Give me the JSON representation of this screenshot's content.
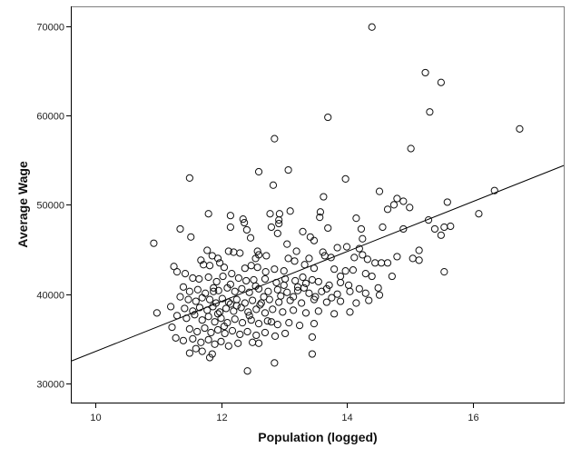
{
  "chart_data": {
    "type": "scatter",
    "title": "",
    "xlabel": "Population (logged)",
    "ylabel": "Average Wage",
    "xlim": [
      9.6,
      17.45
    ],
    "ylim": [
      27900,
      72300
    ],
    "x_ticks": [
      10,
      12,
      14,
      16
    ],
    "x_tick_labels": [
      "10",
      "12",
      "14",
      "16"
    ],
    "y_ticks": [
      30000,
      40000,
      50000,
      60000,
      70000
    ],
    "y_tick_labels": [
      "30000",
      "40000",
      "50000",
      "60000",
      "70000"
    ],
    "grid": false,
    "legend": null,
    "marker": "open-circle",
    "fit_line": {
      "type": "linear",
      "x0": 9.6,
      "y0": 32500,
      "x1": 17.45,
      "y1": 54400
    },
    "points": [
      [
        14.4,
        69900
      ],
      [
        15.25,
        64800
      ],
      [
        15.5,
        63700
      ],
      [
        15.32,
        60400
      ],
      [
        13.7,
        59800
      ],
      [
        16.75,
        58500
      ],
      [
        12.85,
        57400
      ],
      [
        15.02,
        56300
      ],
      [
        12.6,
        53700
      ],
      [
        13.07,
        53900
      ],
      [
        11.5,
        53000
      ],
      [
        13.98,
        52900
      ],
      [
        12.83,
        52200
      ],
      [
        16.35,
        51600
      ],
      [
        14.52,
        51500
      ],
      [
        13.63,
        50900
      ],
      [
        14.8,
        50700
      ],
      [
        14.9,
        50400
      ],
      [
        15.6,
        50300
      ],
      [
        14.75,
        50000
      ],
      [
        15.0,
        49700
      ],
      [
        11.8,
        49000
      ],
      [
        12.15,
        48800
      ],
      [
        12.78,
        49000
      ],
      [
        12.93,
        49000
      ],
      [
        13.1,
        49300
      ],
      [
        13.58,
        49200
      ],
      [
        13.57,
        48600
      ],
      [
        16.1,
        49000
      ],
      [
        12.35,
        48400
      ],
      [
        12.37,
        48000
      ],
      [
        12.92,
        48300
      ],
      [
        12.92,
        47900
      ],
      [
        12.41,
        47200
      ],
      [
        11.35,
        47300
      ],
      [
        12.15,
        47500
      ],
      [
        12.8,
        47500
      ],
      [
        13.7,
        47400
      ],
      [
        14.23,
        47300
      ],
      [
        14.57,
        47500
      ],
      [
        15.3,
        48300
      ],
      [
        15.55,
        47500
      ],
      [
        15.65,
        47600
      ],
      [
        11.52,
        46400
      ],
      [
        12.47,
        46300
      ],
      [
        13.42,
        46400
      ],
      [
        13.48,
        46000
      ],
      [
        14.25,
        46200
      ],
      [
        15.5,
        46600
      ],
      [
        10.93,
        45700
      ],
      [
        13.05,
        45600
      ],
      [
        13.85,
        45200
      ],
      [
        14.0,
        45300
      ],
      [
        14.2,
        45100
      ],
      [
        15.15,
        44900
      ],
      [
        11.78,
        44900
      ],
      [
        12.12,
        44800
      ],
      [
        12.2,
        44700
      ],
      [
        12.58,
        44800
      ],
      [
        13.2,
        44800
      ],
      [
        13.62,
        44700
      ],
      [
        13.65,
        44300
      ],
      [
        12.3,
        44600
      ],
      [
        12.6,
        44400
      ],
      [
        11.95,
        44000
      ],
      [
        11.98,
        43500
      ],
      [
        12.55,
        44000
      ],
      [
        13.07,
        44000
      ],
      [
        13.17,
        43700
      ],
      [
        13.75,
        44100
      ],
      [
        14.12,
        44100
      ],
      [
        14.33,
        43900
      ],
      [
        14.55,
        43500
      ],
      [
        14.65,
        43500
      ],
      [
        15.05,
        44000
      ],
      [
        15.15,
        43800
      ],
      [
        11.25,
        43100
      ],
      [
        11.3,
        42500
      ],
      [
        11.43,
        42300
      ],
      [
        11.72,
        43300
      ],
      [
        11.82,
        43200
      ],
      [
        12.05,
        43000
      ],
      [
        12.17,
        42300
      ],
      [
        12.58,
        43000
      ],
      [
        12.71,
        42500
      ],
      [
        12.85,
        42800
      ],
      [
        13.0,
        42600
      ],
      [
        13.33,
        43300
      ],
      [
        13.48,
        42900
      ],
      [
        13.8,
        42800
      ],
      [
        13.98,
        42600
      ],
      [
        14.3,
        42300
      ],
      [
        14.4,
        42000
      ],
      [
        14.72,
        42000
      ],
      [
        15.55,
        42500
      ],
      [
        11.55,
        41800
      ],
      [
        11.65,
        41700
      ],
      [
        11.8,
        41900
      ],
      [
        11.93,
        41400
      ],
      [
        12.03,
        42000
      ],
      [
        12.28,
        41800
      ],
      [
        12.4,
        41500
      ],
      [
        12.52,
        41600
      ],
      [
        12.7,
        41700
      ],
      [
        12.88,
        41300
      ],
      [
        13.02,
        41700
      ],
      [
        13.18,
        41500
      ],
      [
        13.35,
        41200
      ],
      [
        13.55,
        41400
      ],
      [
        13.72,
        41000
      ],
      [
        13.9,
        41300
      ],
      [
        14.03,
        41000
      ],
      [
        14.2,
        40600
      ],
      [
        14.5,
        40700
      ],
      [
        11.4,
        40800
      ],
      [
        11.5,
        40300
      ],
      [
        11.63,
        40500
      ],
      [
        11.75,
        40100
      ],
      [
        11.88,
        40700
      ],
      [
        11.96,
        40400
      ],
      [
        12.1,
        40700
      ],
      [
        12.22,
        40300
      ],
      [
        12.33,
        40600
      ],
      [
        12.45,
        40200
      ],
      [
        12.6,
        40600
      ],
      [
        12.75,
        40300
      ],
      [
        12.9,
        40500
      ],
      [
        13.05,
        40200
      ],
      [
        13.22,
        40400
      ],
      [
        13.4,
        40100
      ],
      [
        13.6,
        40300
      ],
      [
        13.85,
        40000
      ],
      [
        14.05,
        40300
      ],
      [
        14.3,
        40100
      ],
      [
        14.52,
        39900
      ],
      [
        11.35,
        39700
      ],
      [
        11.48,
        39400
      ],
      [
        11.6,
        39200
      ],
      [
        11.7,
        39600
      ],
      [
        11.82,
        39400
      ],
      [
        11.92,
        39000
      ],
      [
        12.02,
        39500
      ],
      [
        12.12,
        39100
      ],
      [
        12.25,
        39400
      ],
      [
        12.38,
        39000
      ],
      [
        12.5,
        39300
      ],
      [
        12.64,
        39000
      ],
      [
        12.77,
        39400
      ],
      [
        12.92,
        39100
      ],
      [
        13.1,
        39300
      ],
      [
        13.28,
        39000
      ],
      [
        13.48,
        39400
      ],
      [
        13.68,
        39100
      ],
      [
        13.9,
        39200
      ],
      [
        14.15,
        39000
      ],
      [
        14.35,
        39300
      ],
      [
        11.2,
        38600
      ],
      [
        11.42,
        38400
      ],
      [
        11.55,
        38100
      ],
      [
        11.66,
        38500
      ],
      [
        11.78,
        38200
      ],
      [
        11.87,
        38600
      ],
      [
        11.98,
        38000
      ],
      [
        12.08,
        38400
      ],
      [
        12.2,
        38100
      ],
      [
        12.32,
        38500
      ],
      [
        12.43,
        38000
      ],
      [
        12.56,
        38300
      ],
      [
        12.7,
        37900
      ],
      [
        12.82,
        38300
      ],
      [
        12.98,
        38000
      ],
      [
        13.15,
        38200
      ],
      [
        13.35,
        37900
      ],
      [
        13.55,
        38100
      ],
      [
        13.8,
        37800
      ],
      [
        14.05,
        38000
      ],
      [
        10.98,
        37900
      ],
      [
        11.3,
        37600
      ],
      [
        11.45,
        37300
      ],
      [
        11.58,
        37700
      ],
      [
        11.7,
        37100
      ],
      [
        11.8,
        37500
      ],
      [
        11.9,
        36900
      ],
      [
        12.0,
        37300
      ],
      [
        12.1,
        36800
      ],
      [
        12.22,
        37200
      ],
      [
        12.34,
        36800
      ],
      [
        12.48,
        37100
      ],
      [
        12.6,
        36700
      ],
      [
        12.74,
        37000
      ],
      [
        12.9,
        36600
      ],
      [
        13.08,
        36800
      ],
      [
        13.25,
        36500
      ],
      [
        13.48,
        36700
      ],
      [
        11.22,
        36300
      ],
      [
        11.5,
        36100
      ],
      [
        11.62,
        35800
      ],
      [
        11.74,
        36200
      ],
      [
        11.84,
        35700
      ],
      [
        11.95,
        36000
      ],
      [
        12.06,
        35600
      ],
      [
        12.18,
        35900
      ],
      [
        12.3,
        35500
      ],
      [
        12.42,
        35800
      ],
      [
        12.56,
        35400
      ],
      [
        12.7,
        35700
      ],
      [
        12.86,
        35300
      ],
      [
        13.02,
        35600
      ],
      [
        13.45,
        35200
      ],
      [
        11.28,
        35100
      ],
      [
        11.4,
        34800
      ],
      [
        11.55,
        35000
      ],
      [
        11.68,
        34600
      ],
      [
        11.8,
        34900
      ],
      [
        11.9,
        34400
      ],
      [
        12.0,
        34700
      ],
      [
        12.12,
        34200
      ],
      [
        12.27,
        34500
      ],
      [
        12.5,
        34600
      ],
      [
        12.6,
        34500
      ],
      [
        11.6,
        33900
      ],
      [
        11.7,
        33600
      ],
      [
        11.86,
        33300
      ],
      [
        11.5,
        33400
      ],
      [
        13.45,
        33300
      ],
      [
        11.82,
        32900
      ],
      [
        12.85,
        32300
      ],
      [
        12.42,
        31400
      ],
      [
        13.22,
        40800
      ],
      [
        13.3,
        41900
      ],
      [
        12.68,
        39700
      ],
      [
        12.15,
        38900
      ],
      [
        11.95,
        37800
      ],
      [
        12.05,
        36400
      ],
      [
        12.25,
        38700
      ],
      [
        12.45,
        37600
      ],
      [
        12.62,
        38800
      ],
      [
        12.8,
        36900
      ],
      [
        12.95,
        39800
      ],
      [
        13.15,
        39700
      ],
      [
        13.32,
        40700
      ],
      [
        13.5,
        39700
      ],
      [
        13.68,
        40600
      ],
      [
        13.76,
        39600
      ],
      [
        12.38,
        42900
      ],
      [
        12.48,
        43200
      ],
      [
        12.72,
        44300
      ],
      [
        13.4,
        44000
      ],
      [
        11.68,
        43800
      ],
      [
        11.86,
        44300
      ],
      [
        12.9,
        46800
      ],
      [
        13.3,
        47000
      ],
      [
        14.15,
        48500
      ],
      [
        14.65,
        49500
      ],
      [
        14.9,
        47300
      ],
      [
        15.4,
        47300
      ],
      [
        11.88,
        40300
      ],
      [
        12.15,
        41100
      ],
      [
        12.55,
        40900
      ],
      [
        13.0,
        41000
      ],
      [
        13.45,
        41600
      ],
      [
        13.9,
        42000
      ],
      [
        14.1,
        42700
      ],
      [
        14.45,
        43500
      ],
      [
        14.25,
        44400
      ],
      [
        14.8,
        44200
      ]
    ]
  }
}
